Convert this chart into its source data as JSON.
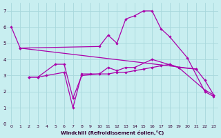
{
  "bg_color": "#c8eef0",
  "grid_color": "#a8d8dc",
  "line_color": "#aa00aa",
  "xlabel": "Windchill (Refroidissement éolien,°C)",
  "ylim": [
    0,
    7.5
  ],
  "xlim": [
    -0.5,
    23.5
  ],
  "yticks": [
    0,
    1,
    2,
    3,
    4,
    5,
    6,
    7
  ],
  "xticks": [
    0,
    1,
    2,
    3,
    4,
    5,
    6,
    7,
    8,
    9,
    10,
    11,
    12,
    13,
    14,
    15,
    16,
    17,
    18,
    19,
    20,
    21,
    22,
    23
  ],
  "series": [
    {
      "x": [
        0,
        1,
        10,
        11,
        12,
        13,
        14,
        15,
        16,
        17,
        18,
        20,
        22,
        23
      ],
      "y": [
        6.0,
        4.7,
        4.8,
        5.5,
        5.0,
        6.5,
        6.7,
        7.0,
        7.0,
        5.9,
        5.4,
        4.1,
        2.0,
        1.7
      ]
    },
    {
      "x": [
        1,
        21
      ],
      "y": [
        4.7,
        3.4
      ]
    },
    {
      "x": [
        2,
        3,
        5,
        6,
        7,
        8,
        10,
        11,
        12,
        13,
        14,
        16,
        19,
        21,
        22,
        23
      ],
      "y": [
        2.9,
        2.9,
        3.7,
        3.7,
        1.6,
        3.0,
        3.1,
        3.5,
        3.3,
        3.5,
        3.5,
        4.0,
        3.5,
        3.4,
        2.7,
        1.8
      ]
    },
    {
      "x": [
        2,
        3,
        4,
        6,
        7,
        8,
        9,
        10,
        11,
        12,
        13,
        14,
        15,
        16,
        17,
        18,
        19,
        22,
        23
      ],
      "y": [
        2.9,
        2.9,
        3.0,
        3.2,
        1.0,
        3.1,
        3.1,
        3.1,
        3.1,
        3.2,
        3.2,
        3.3,
        3.4,
        3.5,
        3.6,
        3.7,
        3.5,
        2.1,
        1.8
      ]
    }
  ]
}
